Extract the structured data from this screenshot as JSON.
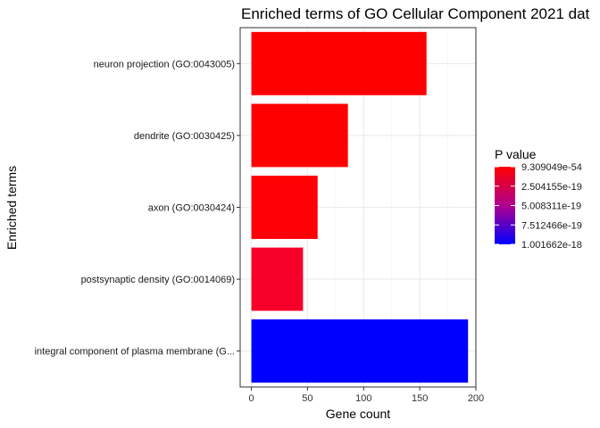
{
  "chart_data": {
    "type": "bar",
    "orientation": "horizontal",
    "title": "Enriched terms of GO Cellular Component 2021 dat",
    "xlabel": "Gene count",
    "ylabel": "Enriched terms",
    "xlim": [
      -10,
      200
    ],
    "xticks": [
      "0",
      "50",
      "100",
      "150",
      "200"
    ],
    "xtick_values": [
      0,
      50,
      100,
      150,
      200
    ],
    "grid": true,
    "legend_position": "right",
    "categories": [
      "neuron projection (GO:0043005)",
      "dendrite (GO:0030425)",
      "axon (GO:0030424)",
      "postsynaptic density (GO:0014069)",
      "integral component of plasma membrane (G..."
    ],
    "values": [
      156,
      86,
      59,
      46,
      193
    ],
    "p_values": [
      9.309049e-54,
      1e-40,
      1e-36,
      1e-19,
      1.001662e-18
    ],
    "colors": [
      "#ff0000",
      "#ff0000",
      "#ff0004",
      "#f6002a",
      "#0000ff"
    ],
    "legend": {
      "title": "P value",
      "labels": [
        "9.309049e-54",
        "2.504155e-19",
        "5.008311e-19",
        "7.512466e-19",
        "1.001662e-18"
      ],
      "color_high": "#ff0000",
      "color_mid": "#9c00a0",
      "color_low": "#0000ff"
    }
  }
}
